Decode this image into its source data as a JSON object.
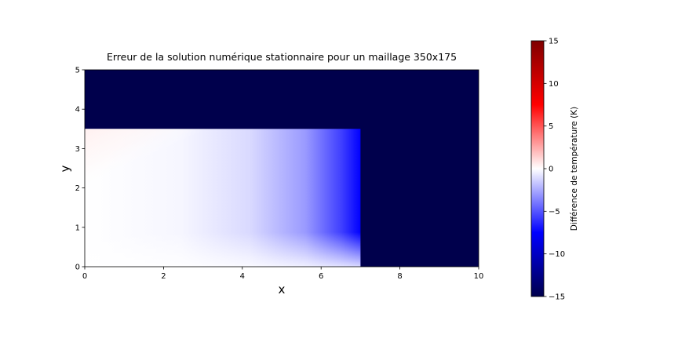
{
  "chart_data": [
    {
      "type": "heatmap",
      "title": "Erreur de la solution numérique stationnaire pour un maillage 350x175",
      "xlabel": "x",
      "ylabel": "y",
      "xlim": [
        0,
        10
      ],
      "ylim": [
        0,
        5
      ],
      "x_ticks": [
        "0",
        "2",
        "4",
        "6",
        "8",
        "10"
      ],
      "y_ticks": [
        "0",
        "1",
        "2",
        "3",
        "4",
        "5"
      ],
      "grid": false,
      "colormap": "seismic",
      "region": {
        "description": "rectangle 0<=x<=7, 0<=y<=3.5",
        "x_range": [
          0,
          7
        ],
        "y_range": [
          0,
          3.5
        ]
      },
      "outside_value": -15,
      "value_range_inside": [
        -10,
        0.5
      ]
    },
    {
      "type": "colorbar",
      "label": "Différence de température (K)",
      "range": [
        -15,
        15
      ],
      "ticks": [
        "15",
        "10",
        "5",
        "0",
        "−5",
        "−10",
        "−15"
      ],
      "colors": [
        "#00004c",
        "#0000ff",
        "#ffffff",
        "#ff0000",
        "#7f0000"
      ]
    }
  ]
}
